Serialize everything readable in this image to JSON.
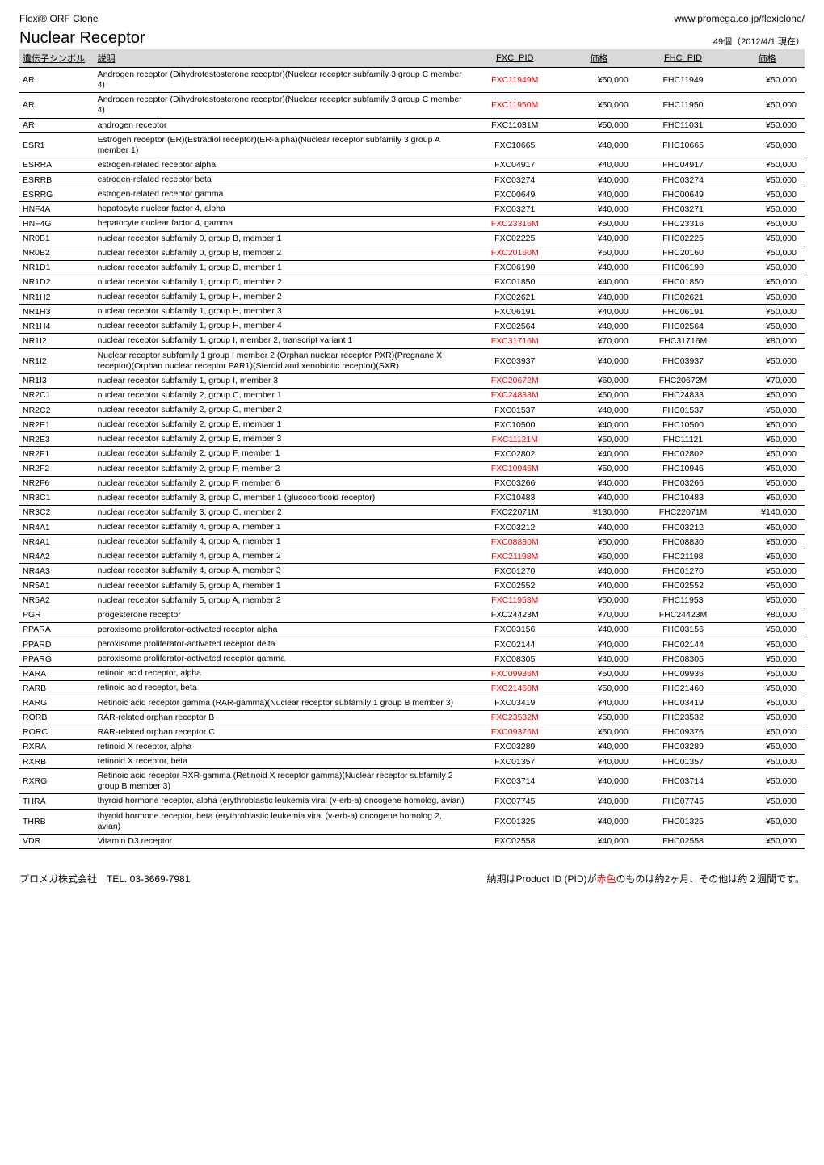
{
  "header": {
    "brand": "Flexi® ORF Clone",
    "url": "www.promega.co.jp/flexiclone/"
  },
  "title": "Nuclear Receptor",
  "count_label": "49個（2012/4/1 現在）",
  "columns": {
    "symbol": "遺伝子シンボル",
    "desc": "説明",
    "fxc_pid": "FXC_PID",
    "price1": "価格",
    "fhc_pid": "FHC_PID",
    "price2": "価格"
  },
  "footer": {
    "company": "プロメガ株式会社　TEL. 03-3669-7981",
    "note_prefix": "納期はProduct ID (PID)が",
    "note_red": "赤色",
    "note_suffix": "のものは約2ヶ月、その他は約２週間です。"
  },
  "rows": [
    {
      "sym": "AR",
      "desc": "Androgen receptor (Dihydrotestosterone receptor)(Nuclear receptor subfamily 3 group C member 4)",
      "fxc": "FXC11949M",
      "fxc_red": true,
      "p1": "¥50,000",
      "fhc": "FHC11949",
      "p2": "¥50,000"
    },
    {
      "sym": "AR",
      "desc": "Androgen receptor (Dihydrotestosterone receptor)(Nuclear receptor subfamily 3 group C member 4)",
      "fxc": "FXC11950M",
      "fxc_red": true,
      "p1": "¥50,000",
      "fhc": "FHC11950",
      "p2": "¥50,000"
    },
    {
      "sym": "AR",
      "desc": "androgen receptor",
      "fxc": "FXC11031M",
      "fxc_red": false,
      "p1": "¥50,000",
      "fhc": "FHC11031",
      "p2": "¥50,000"
    },
    {
      "sym": "ESR1",
      "desc": "Estrogen receptor (ER)(Estradiol receptor)(ER-alpha)(Nuclear receptor subfamily 3 group A member 1)",
      "fxc": "FXC10665",
      "fxc_red": false,
      "p1": "¥40,000",
      "fhc": "FHC10665",
      "p2": "¥50,000"
    },
    {
      "sym": "ESRRA",
      "desc": "estrogen-related receptor alpha",
      "fxc": "FXC04917",
      "fxc_red": false,
      "p1": "¥40,000",
      "fhc": "FHC04917",
      "p2": "¥50,000"
    },
    {
      "sym": "ESRRB",
      "desc": "estrogen-related receptor beta",
      "fxc": "FXC03274",
      "fxc_red": false,
      "p1": "¥40,000",
      "fhc": "FHC03274",
      "p2": "¥50,000"
    },
    {
      "sym": "ESRRG",
      "desc": "estrogen-related receptor gamma",
      "fxc": "FXC00649",
      "fxc_red": false,
      "p1": "¥40,000",
      "fhc": "FHC00649",
      "p2": "¥50,000"
    },
    {
      "sym": "HNF4A",
      "desc": "hepatocyte nuclear factor 4, alpha",
      "fxc": "FXC03271",
      "fxc_red": false,
      "p1": "¥40,000",
      "fhc": "FHC03271",
      "p2": "¥50,000"
    },
    {
      "sym": "HNF4G",
      "desc": "hepatocyte nuclear factor 4, gamma",
      "fxc": "FXC23316M",
      "fxc_red": true,
      "p1": "¥50,000",
      "fhc": "FHC23316",
      "p2": "¥50,000"
    },
    {
      "sym": "NR0B1",
      "desc": "nuclear receptor subfamily 0, group B, member 1",
      "fxc": "FXC02225",
      "fxc_red": false,
      "p1": "¥40,000",
      "fhc": "FHC02225",
      "p2": "¥50,000"
    },
    {
      "sym": "NR0B2",
      "desc": "nuclear receptor subfamily 0, group B, member 2",
      "fxc": "FXC20160M",
      "fxc_red": true,
      "p1": "¥50,000",
      "fhc": "FHC20160",
      "p2": "¥50,000"
    },
    {
      "sym": "NR1D1",
      "desc": "nuclear receptor subfamily 1, group D, member 1",
      "fxc": "FXC06190",
      "fxc_red": false,
      "p1": "¥40,000",
      "fhc": "FHC06190",
      "p2": "¥50,000"
    },
    {
      "sym": "NR1D2",
      "desc": "nuclear receptor subfamily 1, group D, member 2",
      "fxc": "FXC01850",
      "fxc_red": false,
      "p1": "¥40,000",
      "fhc": "FHC01850",
      "p2": "¥50,000"
    },
    {
      "sym": "NR1H2",
      "desc": "nuclear receptor subfamily 1, group H, member 2",
      "fxc": "FXC02621",
      "fxc_red": false,
      "p1": "¥40,000",
      "fhc": "FHC02621",
      "p2": "¥50,000"
    },
    {
      "sym": "NR1H3",
      "desc": "nuclear receptor subfamily 1, group H, member 3",
      "fxc": "FXC06191",
      "fxc_red": false,
      "p1": "¥40,000",
      "fhc": "FHC06191",
      "p2": "¥50,000"
    },
    {
      "sym": "NR1H4",
      "desc": "nuclear receptor subfamily 1, group H, member 4",
      "fxc": "FXC02564",
      "fxc_red": false,
      "p1": "¥40,000",
      "fhc": "FHC02564",
      "p2": "¥50,000"
    },
    {
      "sym": "NR1I2",
      "desc": "nuclear receptor subfamily 1, group I, member 2, transcript variant 1",
      "fxc": "FXC31716M",
      "fxc_red": true,
      "p1": "¥70,000",
      "fhc": "FHC31716M",
      "p2": "¥80,000"
    },
    {
      "sym": "NR1I2",
      "desc": "Nuclear receptor subfamily 1 group I member 2 (Orphan nuclear receptor PXR)(Pregnane X receptor)(Orphan nuclear receptor PAR1)(Steroid and xenobiotic receptor)(SXR)",
      "fxc": "FXC03937",
      "fxc_red": false,
      "p1": "¥40,000",
      "fhc": "FHC03937",
      "p2": "¥50,000"
    },
    {
      "sym": "NR1I3",
      "desc": "nuclear receptor subfamily 1, group I, member 3",
      "fxc": "FXC20672M",
      "fxc_red": true,
      "p1": "¥60,000",
      "fhc": "FHC20672M",
      "p2": "¥70,000"
    },
    {
      "sym": "NR2C1",
      "desc": "nuclear receptor subfamily 2, group C, member 1",
      "fxc": "FXC24833M",
      "fxc_red": true,
      "p1": "¥50,000",
      "fhc": "FHC24833",
      "p2": "¥50,000"
    },
    {
      "sym": "NR2C2",
      "desc": "nuclear receptor subfamily 2, group C, member 2",
      "fxc": "FXC01537",
      "fxc_red": false,
      "p1": "¥40,000",
      "fhc": "FHC01537",
      "p2": "¥50,000"
    },
    {
      "sym": "NR2E1",
      "desc": "nuclear receptor subfamily 2, group E, member 1",
      "fxc": "FXC10500",
      "fxc_red": false,
      "p1": "¥40,000",
      "fhc": "FHC10500",
      "p2": "¥50,000"
    },
    {
      "sym": "NR2E3",
      "desc": "nuclear receptor subfamily 2, group E, member 3",
      "fxc": "FXC11121M",
      "fxc_red": true,
      "p1": "¥50,000",
      "fhc": "FHC11121",
      "p2": "¥50,000"
    },
    {
      "sym": "NR2F1",
      "desc": "nuclear receptor subfamily 2, group F, member 1",
      "fxc": "FXC02802",
      "fxc_red": false,
      "p1": "¥40,000",
      "fhc": "FHC02802",
      "p2": "¥50,000"
    },
    {
      "sym": "NR2F2",
      "desc": "nuclear receptor subfamily 2, group F, member 2",
      "fxc": "FXC10946M",
      "fxc_red": true,
      "p1": "¥50,000",
      "fhc": "FHC10946",
      "p2": "¥50,000"
    },
    {
      "sym": "NR2F6",
      "desc": "nuclear receptor subfamily 2, group F, member 6",
      "fxc": "FXC03266",
      "fxc_red": false,
      "p1": "¥40,000",
      "fhc": "FHC03266",
      "p2": "¥50,000"
    },
    {
      "sym": "NR3C1",
      "desc": "nuclear receptor subfamily 3, group C, member 1 (glucocorticoid receptor)",
      "fxc": "FXC10483",
      "fxc_red": false,
      "p1": "¥40,000",
      "fhc": "FHC10483",
      "p2": "¥50,000"
    },
    {
      "sym": "NR3C2",
      "desc": "nuclear receptor subfamily 3, group C, member 2",
      "fxc": "FXC22071M",
      "fxc_red": false,
      "p1": "¥130,000",
      "fhc": "FHC22071M",
      "p2": "¥140,000"
    },
    {
      "sym": "NR4A1",
      "desc": "nuclear receptor subfamily 4, group A, member 1",
      "fxc": "FXC03212",
      "fxc_red": false,
      "p1": "¥40,000",
      "fhc": "FHC03212",
      "p2": "¥50,000"
    },
    {
      "sym": "NR4A1",
      "desc": "nuclear receptor subfamily 4, group A, member 1",
      "fxc": "FXC08830M",
      "fxc_red": true,
      "p1": "¥50,000",
      "fhc": "FHC08830",
      "p2": "¥50,000"
    },
    {
      "sym": "NR4A2",
      "desc": "nuclear receptor subfamily 4, group A, member 2",
      "fxc": "FXC21198M",
      "fxc_red": true,
      "p1": "¥50,000",
      "fhc": "FHC21198",
      "p2": "¥50,000"
    },
    {
      "sym": "NR4A3",
      "desc": "nuclear receptor subfamily 4, group A, member 3",
      "fxc": "FXC01270",
      "fxc_red": false,
      "p1": "¥40,000",
      "fhc": "FHC01270",
      "p2": "¥50,000"
    },
    {
      "sym": "NR5A1",
      "desc": "nuclear receptor subfamily 5, group A, member 1",
      "fxc": "FXC02552",
      "fxc_red": false,
      "p1": "¥40,000",
      "fhc": "FHC02552",
      "p2": "¥50,000"
    },
    {
      "sym": "NR5A2",
      "desc": "nuclear receptor subfamily 5, group A, member 2",
      "fxc": "FXC11953M",
      "fxc_red": true,
      "p1": "¥50,000",
      "fhc": "FHC11953",
      "p2": "¥50,000"
    },
    {
      "sym": "PGR",
      "desc": "progesterone receptor",
      "fxc": "FXC24423M",
      "fxc_red": false,
      "p1": "¥70,000",
      "fhc": "FHC24423M",
      "p2": "¥80,000"
    },
    {
      "sym": "PPARA",
      "desc": "peroxisome proliferator-activated receptor alpha",
      "fxc": "FXC03156",
      "fxc_red": false,
      "p1": "¥40,000",
      "fhc": "FHC03156",
      "p2": "¥50,000"
    },
    {
      "sym": "PPARD",
      "desc": "peroxisome proliferator-activated receptor delta",
      "fxc": "FXC02144",
      "fxc_red": false,
      "p1": "¥40,000",
      "fhc": "FHC02144",
      "p2": "¥50,000"
    },
    {
      "sym": "PPARG",
      "desc": "peroxisome proliferator-activated receptor gamma",
      "fxc": "FXC08305",
      "fxc_red": false,
      "p1": "¥40,000",
      "fhc": "FHC08305",
      "p2": "¥50,000"
    },
    {
      "sym": "RARA",
      "desc": "retinoic acid receptor, alpha",
      "fxc": "FXC09936M",
      "fxc_red": true,
      "p1": "¥50,000",
      "fhc": "FHC09936",
      "p2": "¥50,000"
    },
    {
      "sym": "RARB",
      "desc": "retinoic acid receptor, beta",
      "fxc": "FXC21460M",
      "fxc_red": true,
      "p1": "¥50,000",
      "fhc": "FHC21460",
      "p2": "¥50,000"
    },
    {
      "sym": "RARG",
      "desc": "Retinoic acid receptor gamma (RAR-gamma)(Nuclear receptor subfamily 1 group B member 3)",
      "fxc": "FXC03419",
      "fxc_red": false,
      "p1": "¥40,000",
      "fhc": "FHC03419",
      "p2": "¥50,000"
    },
    {
      "sym": "RORB",
      "desc": "RAR-related orphan receptor B",
      "fxc": "FXC23532M",
      "fxc_red": true,
      "p1": "¥50,000",
      "fhc": "FHC23532",
      "p2": "¥50,000"
    },
    {
      "sym": "RORC",
      "desc": "RAR-related orphan receptor C",
      "fxc": "FXC09376M",
      "fxc_red": true,
      "p1": "¥50,000",
      "fhc": "FHC09376",
      "p2": "¥50,000"
    },
    {
      "sym": "RXRA",
      "desc": "retinoid X receptor, alpha",
      "fxc": "FXC03289",
      "fxc_red": false,
      "p1": "¥40,000",
      "fhc": "FHC03289",
      "p2": "¥50,000"
    },
    {
      "sym": "RXRB",
      "desc": "retinoid X receptor, beta",
      "fxc": "FXC01357",
      "fxc_red": false,
      "p1": "¥40,000",
      "fhc": "FHC01357",
      "p2": "¥50,000"
    },
    {
      "sym": "RXRG",
      "desc": "Retinoic acid receptor RXR-gamma (Retinoid X receptor gamma)(Nuclear receptor subfamily 2 group B member 3)",
      "fxc": "FXC03714",
      "fxc_red": false,
      "p1": "¥40,000",
      "fhc": "FHC03714",
      "p2": "¥50,000"
    },
    {
      "sym": "THRA",
      "desc": "thyroid hormone receptor, alpha (erythroblastic leukemia viral (v-erb-a) oncogene homolog, avian)",
      "fxc": "FXC07745",
      "fxc_red": false,
      "p1": "¥40,000",
      "fhc": "FHC07745",
      "p2": "¥50,000"
    },
    {
      "sym": "THRB",
      "desc": "thyroid hormone receptor, beta (erythroblastic leukemia viral (v-erb-a) oncogene homolog 2, avian)",
      "fxc": "FXC01325",
      "fxc_red": false,
      "p1": "¥40,000",
      "fhc": "FHC01325",
      "p2": "¥50,000"
    },
    {
      "sym": "VDR",
      "desc": "Vitamin D3 receptor",
      "fxc": "FXC02558",
      "fxc_red": false,
      "p1": "¥40,000",
      "fhc": "FHC02558",
      "p2": "¥50,000"
    }
  ]
}
